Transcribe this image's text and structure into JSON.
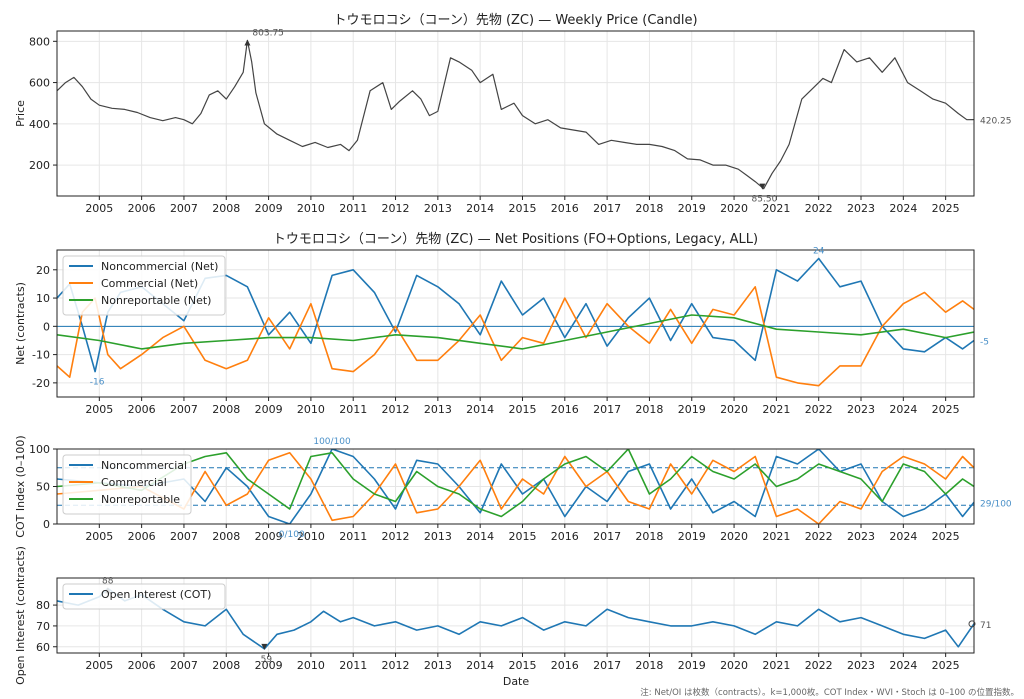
{
  "footer_note": "注: Net/OI は枚数（contracts）。k=1,000枚。COT Index・WVI・Stoch は 0–100 の位置指数。",
  "x_label": "Date",
  "years": [
    "2005",
    "2006",
    "2007",
    "2008",
    "2009",
    "2010",
    "2011",
    "2012",
    "2013",
    "2014",
    "2015",
    "2016",
    "2017",
    "2018",
    "2019",
    "2020",
    "2021",
    "2022",
    "2023",
    "2024",
    "2025"
  ],
  "chart_data": [
    {
      "type": "line",
      "title": "トウモロコシ（コーン）先物 (ZC) — Weekly Price (Candle)",
      "xlabel": "",
      "ylabel": "Price",
      "ylim": [
        50,
        850
      ],
      "yticks": [
        200,
        400,
        600,
        800
      ],
      "xlim": [
        2004.0,
        2025.67
      ],
      "grid": true,
      "color": "#444444",
      "annotations": [
        {
          "text": "803.75",
          "x": 2008.5,
          "y": 803.75,
          "kind": "max"
        },
        {
          "text": "85.50",
          "x": 2020.67,
          "y": 85.5,
          "kind": "min"
        },
        {
          "text": "420.25",
          "x": 2025.67,
          "y": 420.25,
          "kind": "last"
        }
      ],
      "series": [
        {
          "x": [
            2004.0,
            2004.2,
            2004.4,
            2004.6,
            2004.8,
            2005.0,
            2005.3,
            2005.6,
            2005.9,
            2006.2,
            2006.5,
            2006.8,
            2007.0,
            2007.2,
            2007.4,
            2007.6,
            2007.8,
            2008.0,
            2008.2,
            2008.4,
            2008.5,
            2008.6,
            2008.7,
            2008.9,
            2009.2,
            2009.5,
            2009.8,
            2010.1,
            2010.4,
            2010.7,
            2010.9,
            2011.1,
            2011.4,
            2011.7,
            2011.9,
            2012.1,
            2012.4,
            2012.6,
            2012.8,
            2013.0,
            2013.3,
            2013.5,
            2013.8,
            2014.0,
            2014.3,
            2014.5,
            2014.8,
            2015.0,
            2015.3,
            2015.6,
            2015.9,
            2016.2,
            2016.5,
            2016.8,
            2017.1,
            2017.4,
            2017.7,
            2018.0,
            2018.3,
            2018.6,
            2018.9,
            2019.2,
            2019.5,
            2019.8,
            2020.1,
            2020.3,
            2020.5,
            2020.7,
            2020.9,
            2021.1,
            2021.3,
            2021.6,
            2021.9,
            2022.1,
            2022.3,
            2022.6,
            2022.9,
            2023.2,
            2023.5,
            2023.8,
            2024.1,
            2024.4,
            2024.7,
            2025.0,
            2025.3,
            2025.5,
            2025.67
          ],
          "y": [
            560,
            600,
            625,
            580,
            520,
            490,
            475,
            470,
            455,
            430,
            415,
            430,
            420,
            400,
            450,
            540,
            560,
            520,
            580,
            650,
            803.75,
            700,
            550,
            400,
            350,
            320,
            290,
            310,
            285,
            300,
            270,
            320,
            560,
            600,
            470,
            510,
            560,
            520,
            440,
            460,
            720,
            700,
            660,
            600,
            640,
            470,
            500,
            440,
            400,
            420,
            380,
            370,
            360,
            300,
            320,
            310,
            300,
            300,
            290,
            270,
            230,
            225,
            200,
            200,
            180,
            150,
            120,
            85.5,
            160,
            220,
            300,
            520,
            580,
            620,
            600,
            760,
            700,
            720,
            650,
            720,
            600,
            560,
            520,
            500,
            450,
            420,
            420.25
          ]
        }
      ]
    },
    {
      "type": "line",
      "title": "トウモロコシ（コーン）先物 (ZC) — Net Positions (FO+Options, Legacy, ALL)",
      "xlabel": "",
      "ylabel": "Net (contracts)",
      "ylim": [
        -25,
        27
      ],
      "yticks": [
        -20,
        -10,
        0,
        10,
        20
      ],
      "xlim": [
        2004.0,
        2025.67
      ],
      "grid": true,
      "legend": "upper-left",
      "annotations": [
        {
          "text": "24",
          "x": 2022.0,
          "y": 24,
          "kind": "max"
        },
        {
          "text": "-16",
          "x": 2004.9,
          "y": -16,
          "kind": "min"
        },
        {
          "text": "-5",
          "x": 2025.67,
          "y": -5,
          "kind": "last"
        }
      ],
      "series": [
        {
          "name": "Noncommercial (Net)",
          "color": "#1f77b4",
          "x": [
            2004.0,
            2004.3,
            2004.6,
            2004.9,
            2005.2,
            2005.5,
            2006.0,
            2006.5,
            2007.0,
            2007.5,
            2008.0,
            2008.5,
            2009.0,
            2009.5,
            2010.0,
            2010.5,
            2011.0,
            2011.5,
            2012.0,
            2012.5,
            2013.0,
            2013.5,
            2014.0,
            2014.5,
            2015.0,
            2015.5,
            2016.0,
            2016.5,
            2017.0,
            2017.5,
            2018.0,
            2018.5,
            2019.0,
            2019.5,
            2020.0,
            2020.5,
            2021.0,
            2021.5,
            2022.0,
            2022.5,
            2023.0,
            2023.5,
            2024.0,
            2024.5,
            2025.0,
            2025.4,
            2025.67
          ],
          "y": [
            10,
            15,
            0,
            -16,
            5,
            12,
            14,
            8,
            2,
            17,
            18,
            14,
            -3,
            5,
            -6,
            18,
            20,
            12,
            -2,
            18,
            14,
            8,
            -3,
            16,
            4,
            10,
            -4,
            8,
            -7,
            3,
            10,
            -5,
            8,
            -4,
            -5,
            -12,
            20,
            16,
            24,
            14,
            16,
            0,
            -8,
            -9,
            -4,
            -8,
            -5
          ]
        },
        {
          "name": "Commercial (Net)",
          "color": "#ff7f0e",
          "x": [
            2004.0,
            2004.3,
            2004.6,
            2004.9,
            2005.2,
            2005.5,
            2006.0,
            2006.5,
            2007.0,
            2007.5,
            2008.0,
            2008.5,
            2009.0,
            2009.5,
            2010.0,
            2010.5,
            2011.0,
            2011.5,
            2012.0,
            2012.5,
            2013.0,
            2013.5,
            2014.0,
            2014.5,
            2015.0,
            2015.5,
            2016.0,
            2016.5,
            2017.0,
            2017.5,
            2018.0,
            2018.5,
            2019.0,
            2019.5,
            2020.0,
            2020.5,
            2021.0,
            2021.5,
            2022.0,
            2022.5,
            2023.0,
            2023.5,
            2024.0,
            2024.5,
            2025.0,
            2025.4,
            2025.67
          ],
          "y": [
            -14,
            -18,
            5,
            10,
            -10,
            -15,
            -10,
            -4,
            0,
            -12,
            -15,
            -12,
            3,
            -8,
            8,
            -15,
            -16,
            -10,
            0,
            -12,
            -12,
            -5,
            4,
            -12,
            -4,
            -6,
            10,
            -4,
            8,
            0,
            -6,
            6,
            -6,
            6,
            4,
            14,
            -18,
            -20,
            -21,
            -14,
            -14,
            0,
            8,
            12,
            5,
            9,
            6
          ]
        },
        {
          "name": "Nonreportable (Net)",
          "color": "#2ca02c",
          "x": [
            2004.0,
            2005.0,
            2006.0,
            2007.0,
            2008.0,
            2009.0,
            2010.0,
            2011.0,
            2012.0,
            2013.0,
            2014.0,
            2015.0,
            2016.0,
            2017.0,
            2018.0,
            2019.0,
            2020.0,
            2021.0,
            2022.0,
            2023.0,
            2024.0,
            2025.0,
            2025.67
          ],
          "y": [
            -3,
            -5,
            -8,
            -6,
            -5,
            -4,
            -4,
            -5,
            -3,
            -4,
            -6,
            -8,
            -5,
            -2,
            1,
            4,
            3,
            -1,
            -2,
            -3,
            -1,
            -4,
            -2
          ]
        }
      ]
    },
    {
      "type": "line",
      "title": "",
      "xlabel": "",
      "ylabel": "COT Index (0–100)",
      "ylim": [
        0,
        100
      ],
      "yticks": [
        0,
        50,
        100
      ],
      "xlim": [
        2004.0,
        2025.67
      ],
      "reference_lines": [
        25,
        75
      ],
      "grid": true,
      "legend": "upper-left",
      "annotations": [
        {
          "text": "100/100",
          "x": 2010.5,
          "y": 100,
          "kind": "max"
        },
        {
          "text": "0/100",
          "x": 2009.5,
          "y": 0,
          "kind": "min"
        },
        {
          "text": "29/100",
          "x": 2025.67,
          "y": 29,
          "kind": "last"
        }
      ],
      "series": [
        {
          "name": "Noncommercial",
          "color": "#1f77b4",
          "x": [
            2004.0,
            2005.0,
            2006.0,
            2007.0,
            2007.5,
            2008.0,
            2008.5,
            2009.0,
            2009.5,
            2010.0,
            2010.5,
            2011.0,
            2011.5,
            2012.0,
            2012.5,
            2013.0,
            2013.5,
            2014.0,
            2014.5,
            2015.0,
            2015.5,
            2016.0,
            2016.5,
            2017.0,
            2017.5,
            2018.0,
            2018.5,
            2019.0,
            2019.5,
            2020.0,
            2020.5,
            2021.0,
            2021.5,
            2022.0,
            2022.5,
            2023.0,
            2023.5,
            2024.0,
            2024.5,
            2025.0,
            2025.4,
            2025.67
          ],
          "y": [
            60,
            55,
            50,
            60,
            30,
            75,
            50,
            10,
            0,
            40,
            100,
            90,
            60,
            20,
            85,
            80,
            50,
            15,
            80,
            40,
            60,
            10,
            50,
            30,
            70,
            80,
            20,
            60,
            15,
            30,
            10,
            90,
            80,
            100,
            70,
            80,
            30,
            10,
            20,
            40,
            10,
            29
          ]
        },
        {
          "name": "Commercial",
          "color": "#ff7f0e",
          "x": [
            2004.0,
            2005.0,
            2006.0,
            2007.0,
            2007.5,
            2008.0,
            2008.5,
            2009.0,
            2009.5,
            2010.0,
            2010.5,
            2011.0,
            2011.5,
            2012.0,
            2012.5,
            2013.0,
            2013.5,
            2014.0,
            2014.5,
            2015.0,
            2015.5,
            2016.0,
            2016.5,
            2017.0,
            2017.5,
            2018.0,
            2018.5,
            2019.0,
            2019.5,
            2020.0,
            2020.5,
            2021.0,
            2021.5,
            2022.0,
            2022.5,
            2023.0,
            2023.5,
            2024.0,
            2024.5,
            2025.0,
            2025.4,
            2025.67
          ],
          "y": [
            40,
            45,
            50,
            20,
            70,
            25,
            40,
            85,
            95,
            60,
            5,
            10,
            40,
            80,
            15,
            20,
            50,
            85,
            20,
            60,
            40,
            90,
            50,
            70,
            30,
            20,
            80,
            40,
            85,
            70,
            90,
            10,
            20,
            0,
            30,
            20,
            70,
            90,
            80,
            60,
            90,
            75
          ]
        },
        {
          "name": "Nonreportable",
          "color": "#2ca02c",
          "x": [
            2004.0,
            2005.0,
            2006.0,
            2007.0,
            2007.5,
            2008.0,
            2008.5,
            2009.0,
            2009.5,
            2010.0,
            2010.5,
            2011.0,
            2011.5,
            2012.0,
            2012.5,
            2013.0,
            2013.5,
            2014.0,
            2014.5,
            2015.0,
            2015.5,
            2016.0,
            2016.5,
            2017.0,
            2017.5,
            2018.0,
            2018.5,
            2019.0,
            2019.5,
            2020.0,
            2020.5,
            2021.0,
            2021.5,
            2022.0,
            2022.5,
            2023.0,
            2023.5,
            2024.0,
            2024.5,
            2025.0,
            2025.4,
            2025.67
          ],
          "y": [
            50,
            55,
            45,
            80,
            90,
            95,
            60,
            40,
            20,
            90,
            95,
            60,
            40,
            30,
            70,
            50,
            40,
            20,
            10,
            30,
            60,
            80,
            90,
            70,
            100,
            40,
            60,
            90,
            70,
            60,
            80,
            50,
            60,
            80,
            70,
            60,
            30,
            80,
            70,
            40,
            60,
            50
          ]
        }
      ]
    },
    {
      "type": "line",
      "title": "",
      "xlabel": "Date",
      "ylabel": "Open Interest (contracts)",
      "ylim": [
        57,
        93
      ],
      "yticks": [
        60,
        70,
        80
      ],
      "xlim": [
        2004.0,
        2025.67
      ],
      "grid": true,
      "legend": "upper-left",
      "annotations": [
        {
          "text": "88",
          "x": 2005.2,
          "y": 88,
          "kind": "max"
        },
        {
          "text": "59",
          "x": 2008.9,
          "y": 59,
          "kind": "min"
        },
        {
          "text": "71",
          "x": 2025.67,
          "y": 71,
          "kind": "last"
        }
      ],
      "series": [
        {
          "name": "Open Interest (COT)",
          "color": "#1f77b4",
          "x": [
            2004.0,
            2004.5,
            2005.0,
            2005.2,
            2005.6,
            2006.0,
            2006.5,
            2007.0,
            2007.5,
            2008.0,
            2008.4,
            2008.9,
            2009.2,
            2009.6,
            2010.0,
            2010.3,
            2010.7,
            2011.0,
            2011.5,
            2012.0,
            2012.5,
            2013.0,
            2013.5,
            2014.0,
            2014.5,
            2015.0,
            2015.5,
            2016.0,
            2016.5,
            2017.0,
            2017.5,
            2018.0,
            2018.5,
            2019.0,
            2019.5,
            2020.0,
            2020.5,
            2021.0,
            2021.5,
            2022.0,
            2022.5,
            2023.0,
            2023.5,
            2024.0,
            2024.5,
            2025.0,
            2025.3,
            2025.5,
            2025.67
          ],
          "y": [
            82,
            80,
            84,
            88,
            82,
            85,
            78,
            72,
            70,
            78,
            66,
            59,
            66,
            68,
            72,
            77,
            72,
            74,
            70,
            72,
            68,
            70,
            66,
            72,
            70,
            74,
            68,
            72,
            70,
            78,
            74,
            72,
            70,
            70,
            72,
            70,
            66,
            72,
            70,
            78,
            72,
            74,
            70,
            66,
            64,
            68,
            60,
            66,
            71
          ]
        }
      ]
    }
  ]
}
